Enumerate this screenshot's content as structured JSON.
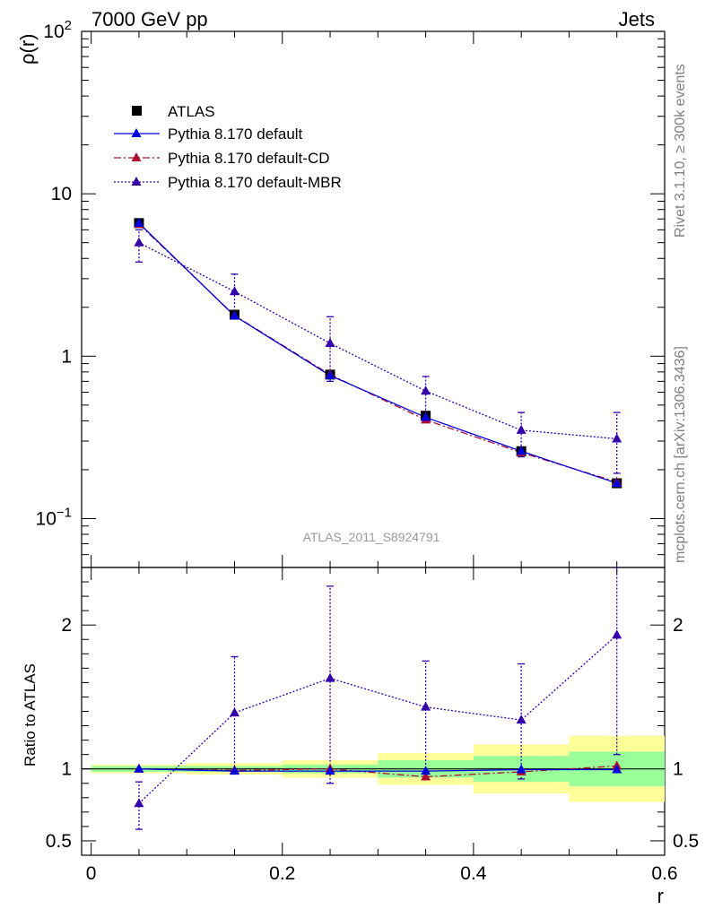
{
  "header": {
    "left": "7000 GeV pp",
    "right": "Jets"
  },
  "side_labels": {
    "rivet": "Rivet 3.1.10, ≥ 300k events",
    "mcplots": "mcplots.cern.ch [arXiv:1306.3436]"
  },
  "watermark": "ATLAS_2011_S8924791",
  "colors": {
    "atlas": "#000000",
    "default": "#0000dd",
    "cd": "#aa1133",
    "mbr": "#3300aa",
    "band_outer": "#ffff99",
    "band_inner": "#99ff99"
  },
  "chart_data": [
    {
      "type": "line",
      "ylabel": "ρ(r)",
      "yscale": "log",
      "ylim": [
        0.05,
        100
      ],
      "xlim": [
        -0.01,
        0.6
      ],
      "y_ticks": [
        {
          "value": 0.1,
          "base": "10",
          "exp": "−1"
        },
        {
          "value": 1,
          "label": "1"
        },
        {
          "value": 10,
          "label": "10"
        },
        {
          "value": 100,
          "base": "10",
          "exp": "2"
        }
      ],
      "legend_position": "top-left",
      "x": [
        0.05,
        0.15,
        0.25,
        0.35,
        0.45,
        0.55
      ],
      "series": [
        {
          "name": "ATLAS",
          "marker": "square",
          "values": [
            6.6,
            1.8,
            0.77,
            0.43,
            0.26,
            0.165
          ]
        },
        {
          "name": "Pythia 8.170 default",
          "style": "solid",
          "marker": "triangle",
          "values": [
            6.6,
            1.77,
            0.76,
            0.42,
            0.26,
            0.165
          ]
        },
        {
          "name": "Pythia 8.170 default-CD",
          "style": "dashdot",
          "marker": "triangle",
          "values": [
            6.5,
            1.78,
            0.77,
            0.405,
            0.255,
            0.168
          ]
        },
        {
          "name": "Pythia 8.170 default-MBR",
          "style": "dotted",
          "marker": "triangle",
          "values": [
            5.0,
            2.5,
            1.2,
            0.61,
            0.35,
            0.31
          ],
          "err_low": [
            3.8,
            1.8,
            0.7,
            0.42,
            0.24,
            0.19
          ],
          "err_high": [
            6.0,
            3.2,
            1.75,
            0.75,
            0.45,
            0.45
          ]
        }
      ]
    },
    {
      "type": "line",
      "ylabel": "Ratio to ATLAS",
      "xlabel": "r",
      "ylim": [
        0.4,
        2.4
      ],
      "xlim": [
        -0.01,
        0.6
      ],
      "x_ticks": [
        {
          "value": 0,
          "label": "0"
        },
        {
          "value": 0.2,
          "label": "0.2"
        },
        {
          "value": 0.4,
          "label": "0.4"
        },
        {
          "value": 0.6,
          "label": "0.6"
        }
      ],
      "y_ticks": [
        {
          "value": 0.5,
          "label": "0.5"
        },
        {
          "value": 1,
          "label": "1"
        },
        {
          "value": 2,
          "label": "2"
        }
      ],
      "x": [
        0.05,
        0.15,
        0.25,
        0.35,
        0.45,
        0.55
      ],
      "bins": [
        [
          0,
          0.1
        ],
        [
          0.1,
          0.2
        ],
        [
          0.2,
          0.3
        ],
        [
          0.3,
          0.4
        ],
        [
          0.4,
          0.5
        ],
        [
          0.5,
          0.6
        ]
      ],
      "band_outer": [
        [
          0.97,
          1.03
        ],
        [
          0.96,
          1.04
        ],
        [
          0.94,
          1.06
        ],
        [
          0.89,
          1.11
        ],
        [
          0.83,
          1.17
        ],
        [
          0.77,
          1.23
        ]
      ],
      "band_inner": [
        [
          0.98,
          1.02
        ],
        [
          0.98,
          1.02
        ],
        [
          0.97,
          1.03
        ],
        [
          0.94,
          1.06
        ],
        [
          0.91,
          1.09
        ],
        [
          0.88,
          1.12
        ]
      ],
      "series": [
        {
          "name": "Pythia 8.170 default",
          "values": [
            1.0,
            0.985,
            0.985,
            0.985,
            0.995,
            0.995
          ]
        },
        {
          "name": "Pythia 8.170 default-CD",
          "values": [
            1.0,
            0.99,
            1.0,
            0.945,
            0.98,
            1.02
          ]
        },
        {
          "name": "Pythia 8.170 default-MBR",
          "values": [
            0.76,
            1.39,
            1.63,
            1.43,
            1.34,
            1.93
          ],
          "err_low": [
            0.58,
            0.99,
            0.9,
            0.98,
            0.93,
            1.1
          ],
          "err_high": [
            0.91,
            1.78,
            2.27,
            1.75,
            1.73,
            2.4
          ]
        }
      ]
    }
  ]
}
